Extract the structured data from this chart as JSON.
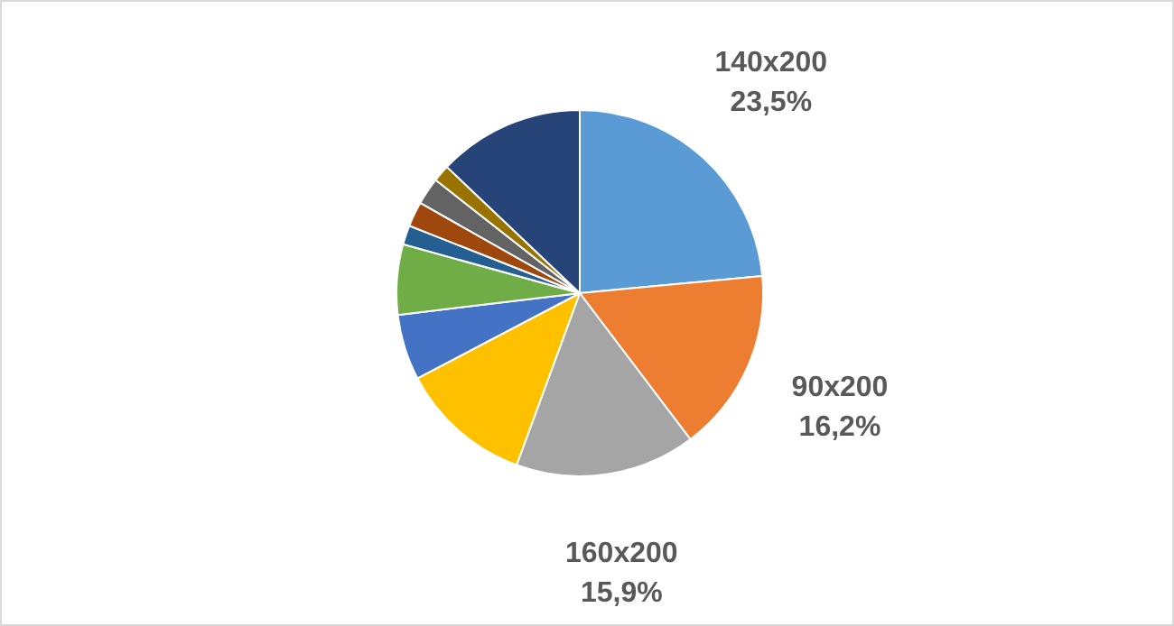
{
  "chart_data": {
    "type": "pie",
    "categories": [
      "140x200",
      "90x200",
      "160x200",
      null,
      null,
      null,
      null,
      null,
      null,
      null,
      null
    ],
    "values": [
      23.5,
      16.2,
      15.9,
      11.7,
      5.8,
      6.2,
      1.7,
      2.2,
      2.4,
      1.5,
      12.9
    ],
    "value_labels": [
      "23,5%",
      "16,2%",
      "15,9%",
      null,
      null,
      null,
      null,
      null,
      null,
      null,
      null
    ],
    "colors": [
      "#5b9bd5",
      "#ed7d31",
      "#a5a5a5",
      "#ffc000",
      "#4472c4",
      "#70ad47",
      "#255e91",
      "#9e480e",
      "#636363",
      "#997300",
      "#264478"
    ],
    "legend": false
  }
}
